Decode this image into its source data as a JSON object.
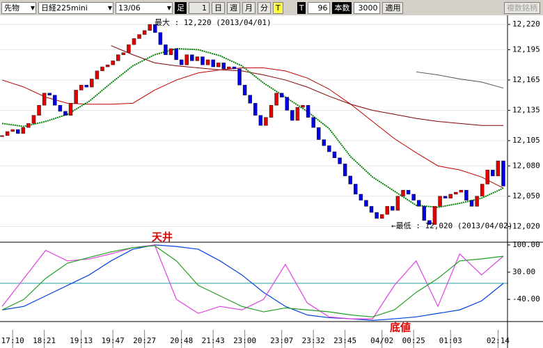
{
  "toolbar": {
    "market": "先物",
    "symbol": "日経225mini",
    "contract": "13/06",
    "bar_label": "足",
    "bar_value": "1",
    "day": "日",
    "week": "週",
    "month": "月",
    "minute": "分",
    "tick": "T",
    "tick2": "T",
    "count": "96",
    "count_label": "本数",
    "max_count": "3000",
    "apply": "適用",
    "multi": "複数銘柄"
  },
  "chart_data": [
    {
      "type": "candlestick",
      "categories": [
        null,
        null,
        "17:10",
        null,
        null,
        null,
        null,
        null,
        "18:21",
        null,
        null,
        null,
        null,
        null,
        null,
        "19:13",
        null,
        null,
        null,
        null,
        null,
        "19:47",
        null,
        null,
        null,
        null,
        null,
        "20:27",
        null,
        null,
        null,
        null,
        null,
        null,
        "20:48",
        null,
        null,
        null,
        null,
        null,
        "21:43",
        null,
        null,
        null,
        null,
        null,
        "23:00",
        null,
        null,
        null,
        null,
        null,
        null,
        "23:07",
        null,
        null,
        null,
        null,
        null,
        "23:32",
        null,
        null,
        null,
        null,
        null,
        "23:45",
        null,
        null,
        null,
        null,
        null,
        null,
        "04/02",
        null,
        null,
        null,
        null,
        null,
        "00:25",
        null,
        null,
        null,
        null,
        null,
        null,
        "01:03",
        null,
        null,
        null,
        null,
        null,
        null,
        null,
        null,
        "02:14",
        null
      ],
      "values": [
        12110,
        12114,
        12116,
        12112,
        12118,
        12122,
        12130,
        12140,
        12152,
        12150,
        12140,
        12134,
        12130,
        12142,
        12155,
        12160,
        12158,
        12166,
        12174,
        12178,
        12180,
        12184,
        12190,
        12192,
        12200,
        12206,
        12210,
        12214,
        12220,
        12212,
        12200,
        12190,
        12196,
        12185,
        12180,
        12190,
        12184,
        12188,
        12180,
        12185,
        12178,
        12182,
        12176,
        12178,
        12176,
        12160,
        12150,
        12142,
        12130,
        12120,
        12128,
        12140,
        12152,
        12148,
        12135,
        12125,
        12138,
        12140,
        12128,
        12118,
        12106,
        12100,
        12094,
        12088,
        12082,
        12070,
        12062,
        12052,
        12046,
        12040,
        12034,
        12028,
        12032,
        12040,
        12036,
        12050,
        12056,
        12052,
        12046,
        12040,
        12026,
        12022,
        12040,
        12050,
        12048,
        12052,
        12054,
        12056,
        12046,
        12040,
        12050,
        12062,
        12076,
        12070,
        12085,
        12060
      ],
      "up_color": "#e00000",
      "down_color": "#0000e0",
      "overlays": [
        {
          "color": "#c00000",
          "values": [
            12165,
            12158,
            12148,
            12142,
            12141,
            12141,
            12142,
            12155,
            12165,
            12172,
            12175,
            12177,
            12177,
            12174,
            12167,
            12156,
            12141,
            12124,
            12107,
            12093,
            12080,
            12076,
            12069,
            12058
          ]
        },
        {
          "color": "#800000",
          "values": [
            null,
            null,
            null,
            null,
            null,
            12199,
            12190,
            12182,
            12179,
            12177,
            12175,
            12174,
            12170,
            12165,
            12158,
            12149,
            12141,
            12135,
            12131,
            12127,
            12124,
            12122,
            12120,
            12120
          ]
        },
        {
          "color": "#505050",
          "values": [
            null,
            null,
            null,
            null,
            null,
            null,
            null,
            null,
            null,
            null,
            null,
            null,
            null,
            null,
            null,
            null,
            null,
            null,
            null,
            12173,
            12170,
            12166,
            12163,
            12157
          ]
        },
        {
          "color": "#008000",
          "dotted": true,
          "values": [
            12122,
            12119,
            12124,
            12131,
            12144,
            12162,
            12179,
            12190,
            12196,
            12195,
            12189,
            12179,
            12162,
            12148,
            12134,
            12117,
            12089,
            12069,
            12055,
            12041,
            12039,
            12043,
            12048,
            12058
          ]
        }
      ],
      "ylim": [
        12010,
        12229
      ],
      "yticks": [
        {
          "value": 12020,
          "label": "12,020"
        },
        {
          "value": 12050,
          "label": "12,050"
        },
        {
          "value": 12080,
          "label": "12,080"
        },
        {
          "value": 12105,
          "label": "12,105"
        },
        {
          "value": 12135,
          "label": "12,135"
        },
        {
          "value": 12165,
          "label": "12,165"
        },
        {
          "value": 12195,
          "label": "12,195"
        },
        {
          "value": 12220,
          "label": "12,220"
        }
      ],
      "grid": true,
      "max_annotation": "最大 : 12,220 (2013/04/01)",
      "min_annotation": "←最低 : 12,020 (2013/04/02)"
    },
    {
      "type": "line",
      "series": [
        {
          "color": "#0040e0",
          "values": [
            -67,
            -58,
            -31,
            -4,
            23,
            59,
            89,
            100,
            96,
            89,
            59,
            23,
            -22,
            -58,
            -80,
            -87,
            -90,
            -94,
            -90,
            -85,
            -76,
            -67,
            -44,
            1
          ]
        },
        {
          "color": "#e040e0",
          "values": [
            -58,
            14,
            86,
            59,
            64,
            77,
            93,
            100,
            -40,
            -76,
            -58,
            -67,
            -40,
            50,
            -49,
            -85,
            -90,
            -90,
            -4,
            59,
            -58,
            77,
            23,
            71
          ]
        },
        {
          "color": "#20a020",
          "values": [
            -67,
            -40,
            14,
            53,
            68,
            82,
            93,
            98,
            59,
            -4,
            -31,
            -58,
            -72,
            -62,
            -67,
            -72,
            -80,
            -85,
            -67,
            -22,
            14,
            59,
            64,
            71
          ]
        }
      ],
      "ylim": [
        -97,
        107
      ],
      "yticks": [
        {
          "value": 100,
          "label": "100.00"
        },
        {
          "value": 30,
          "label": "30.00"
        },
        {
          "value": -40,
          "label": "-40.00"
        }
      ],
      "top_annotation": "天井",
      "bottom_annotation": "底値"
    }
  ]
}
